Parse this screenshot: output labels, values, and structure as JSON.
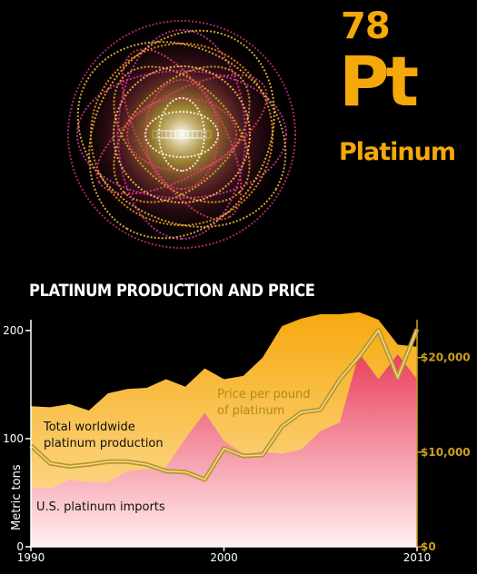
{
  "element": {
    "number": "78",
    "symbol": "Pt",
    "name": "Platinum"
  },
  "colors": {
    "gold": "#f5a80a",
    "production_fill": "#f9b21e",
    "imports_fill": "#ee4f66",
    "price_line": "#b8962e",
    "background": "#000000"
  },
  "chart_data": {
    "type": "area",
    "title": "PLATINUM PRODUCTION AND PRICE",
    "x": [
      1990,
      1991,
      1992,
      1993,
      1994,
      1995,
      1996,
      1997,
      1998,
      1999,
      2000,
      2001,
      2002,
      2003,
      2004,
      2005,
      2006,
      2007,
      2008,
      2009,
      2010
    ],
    "series": [
      {
        "name": "Total worldwide platinum production",
        "axis": "left",
        "values": [
          130,
          129,
          132,
          126,
          142,
          146,
          147,
          155,
          148,
          165,
          155,
          158,
          175,
          204,
          211,
          215,
          215,
          217,
          210,
          187,
          185
        ]
      },
      {
        "name": "U.S. platinum imports",
        "axis": "left",
        "values": [
          55,
          54,
          62,
          60,
          60,
          70,
          72,
          74,
          100,
          124,
          98,
          86,
          88,
          86,
          90,
          107,
          115,
          179,
          155,
          178,
          155
        ]
      },
      {
        "name": "Price per pound of platinum",
        "axis": "right",
        "values": [
          10700,
          8800,
          8500,
          8700,
          9000,
          9000,
          8700,
          8000,
          7900,
          7100,
          10400,
          9600,
          9700,
          12700,
          14200,
          14500,
          17700,
          20100,
          22900,
          17900,
          23000
        ]
      }
    ],
    "annotations": {
      "production": [
        "Total worldwide",
        "platinum production"
      ],
      "imports": "U.S. platinum imports",
      "price": [
        "Price per pound",
        "of platinum"
      ]
    },
    "xticks": [
      1990,
      2000,
      2010
    ],
    "xtick_labels": [
      "1990",
      "2000",
      "2010"
    ],
    "yticks_left": [
      0,
      100,
      200
    ],
    "ytick_labels_left": [
      "0",
      "100",
      "200"
    ],
    "ylabel_left": "Metric tons",
    "yticks_right": [
      0,
      10000,
      20000
    ],
    "ytick_labels_right": [
      "$0",
      "$10,000",
      "$20,000"
    ],
    "ylim_left": [
      0,
      210
    ],
    "ylim_right": [
      0,
      24000
    ],
    "grid": false
  }
}
